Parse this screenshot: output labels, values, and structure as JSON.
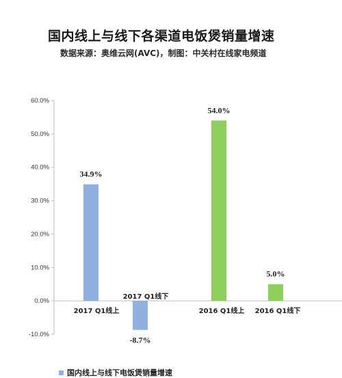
{
  "chart_data": {
    "type": "bar",
    "title": "国内线上与线下各渠道电饭煲销量增速",
    "subtitle": "数据来源：奥维云网(AVC)，制图：中关村在线家电频道",
    "categories": [
      "2017 Q1线上",
      "2017 Q1线下",
      "2016 Q1线上",
      "2016 Q1线下"
    ],
    "values": [
      34.9,
      -8.7,
      54.0,
      5.0
    ],
    "data_labels": [
      "34.9%",
      "-8.7%",
      "54.0%",
      "5.0%"
    ],
    "bar_colors": [
      "#8fb0e0",
      "#8fb0e0",
      "#8ccf5a",
      "#8ccf5a"
    ],
    "yticks": [
      "-10.0%",
      "0.0%",
      "10.0%",
      "20.0%",
      "30.0%",
      "40.0%",
      "50.0%",
      "60.0%"
    ],
    "ylim": [
      -10,
      60
    ],
    "legend": [
      {
        "name": "国内线上与线下电饭煲销量增速",
        "color": "#8fb0e0"
      }
    ],
    "legend_position": "bottom-left",
    "grid": false
  }
}
